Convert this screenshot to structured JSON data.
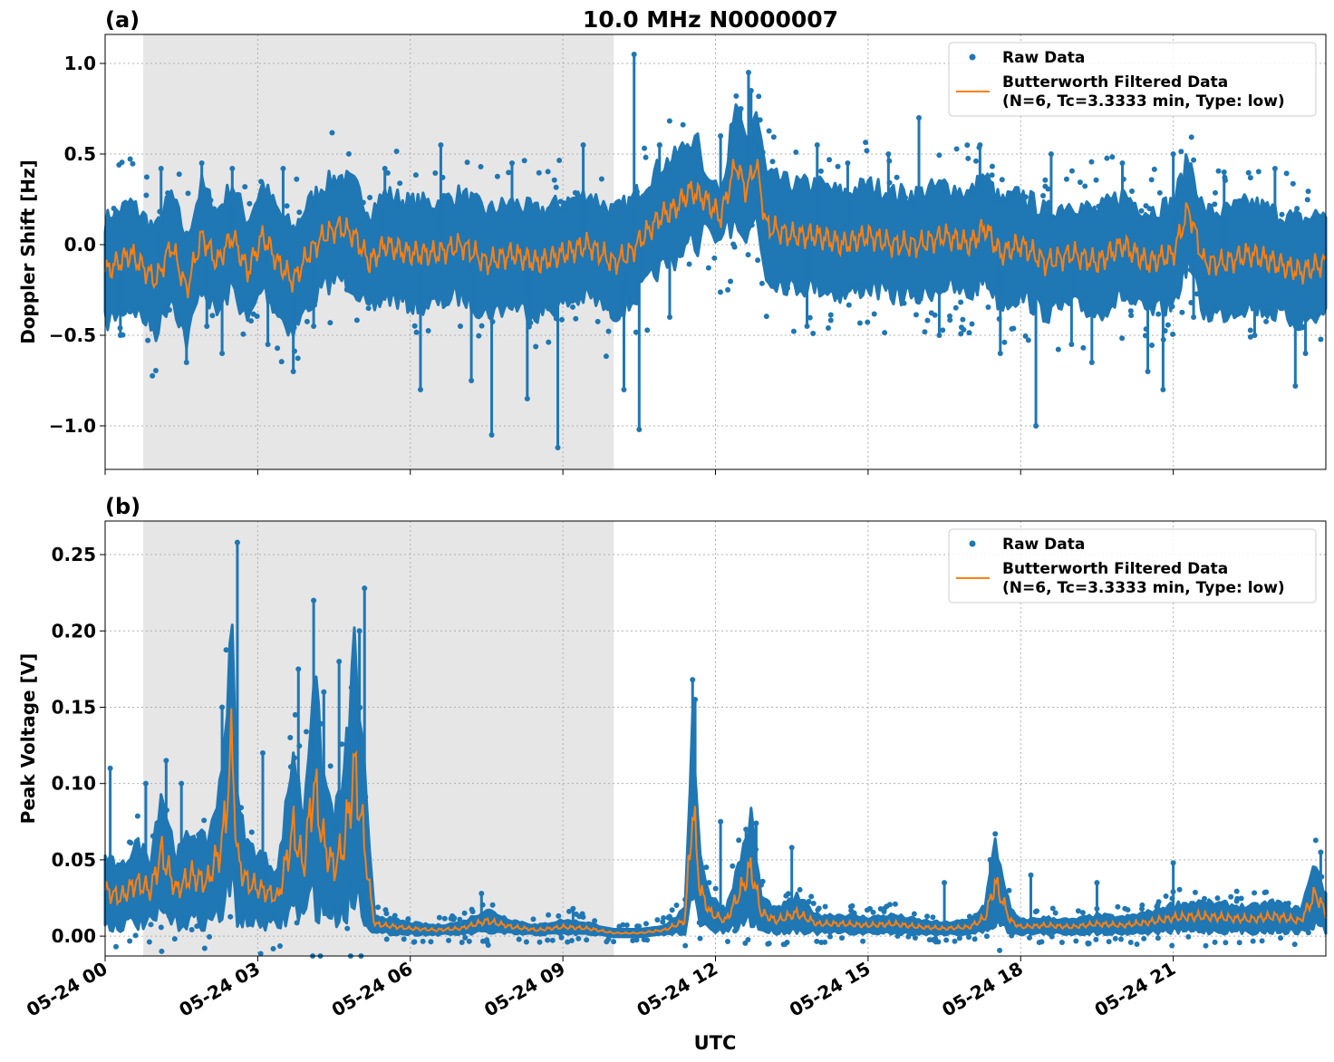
{
  "figure": {
    "title": "10.0 MHz N0000007",
    "xlabel": "UTC",
    "x_tick_labels": [
      "05-24 00",
      "05-24 03",
      "05-24 06",
      "05-24 09",
      "05-24 12",
      "05-24 15",
      "05-24 18",
      "05-24 21"
    ],
    "x_tick_hours": [
      0,
      3,
      6,
      9,
      12,
      15,
      18,
      21
    ],
    "xlim_hours": [
      0,
      24
    ],
    "shaded_interval_hours": [
      0.75,
      10.0
    ]
  },
  "colors": {
    "raw": "#1f77b4",
    "filtered": "#ff7f0e",
    "shade": "#e6e6e6",
    "grid": "#b0b0b0"
  },
  "legend": {
    "raw_label": "Raw Data",
    "filtered_line1": "Butterworth Filtered Data",
    "filtered_line2": "(N=6, Tc=3.3333 min, Type: low)",
    "placement": "top-right"
  },
  "chart_data": [
    {
      "type": "scatter",
      "panel_label": "(a)",
      "title": "10.0 MHz N0000007",
      "xlabel": "",
      "ylabel": "Doppler Shift [Hz]",
      "ylim": [
        -1.24,
        1.16
      ],
      "y_ticks": [
        1.0,
        0.5,
        0.0,
        -0.5,
        -1.0
      ],
      "y_tick_labels": [
        "1.0",
        "0.5",
        "0.0",
        "−0.5",
        "−1.0"
      ],
      "grid": true,
      "series": [
        {
          "name": "Butterworth Filtered Data (N=6, Tc=3.3333 min, Type: low)",
          "hours": [
            0,
            0.5,
            1.0,
            1.3,
            1.6,
            1.9,
            2.2,
            2.5,
            2.8,
            3.1,
            3.4,
            3.7,
            4.0,
            4.3,
            4.6,
            4.9,
            5.2,
            5.5,
            6.0,
            6.5,
            7.0,
            7.5,
            8.0,
            8.5,
            9.0,
            9.5,
            10.0,
            10.3,
            10.6,
            10.9,
            11.2,
            11.5,
            11.8,
            12.1,
            12.4,
            12.6,
            12.8,
            13.0,
            13.5,
            14.0,
            14.5,
            15.0,
            15.5,
            16.0,
            16.5,
            17.0,
            17.3,
            17.6,
            18.0,
            18.5,
            19.0,
            19.5,
            20.0,
            20.5,
            21.0,
            21.3,
            21.6,
            22.0,
            22.5,
            23.0,
            23.5,
            24.0
          ],
          "values": [
            -0.15,
            -0.05,
            -0.2,
            0.0,
            -0.25,
            0.05,
            -0.1,
            0.05,
            -0.15,
            0.05,
            -0.1,
            -0.2,
            -0.05,
            0.05,
            0.1,
            0.05,
            -0.1,
            0.0,
            -0.05,
            -0.05,
            0.0,
            -0.1,
            -0.05,
            -0.1,
            -0.05,
            0.0,
            -0.1,
            -0.05,
            0.05,
            0.15,
            0.2,
            0.3,
            0.25,
            0.15,
            0.45,
            0.3,
            0.45,
            0.1,
            0.05,
            0.05,
            0.0,
            0.05,
            0.0,
            0.0,
            0.05,
            0.0,
            0.1,
            -0.05,
            0.0,
            -0.1,
            -0.05,
            -0.1,
            0.0,
            -0.1,
            -0.05,
            0.2,
            -0.1,
            -0.1,
            -0.05,
            -0.1,
            -0.15,
            -0.1
          ]
        },
        {
          "name": "Raw Data",
          "hours": [
            0.3,
            1.1,
            1.6,
            1.9,
            2.0,
            2.3,
            2.5,
            3.2,
            3.5,
            3.7,
            4.1,
            5.5,
            6.2,
            6.6,
            7.2,
            7.6,
            8.0,
            8.3,
            8.9,
            9.4,
            10.2,
            10.4,
            10.5,
            10.9,
            11.1,
            12.1,
            12.5,
            12.65,
            12.7,
            12.8,
            13.3,
            13.8,
            14.0,
            14.6,
            15.4,
            16.0,
            16.4,
            17.2,
            17.6,
            18.3,
            18.6,
            19.0,
            19.4,
            20.0,
            20.5,
            20.8,
            21.0,
            21.4,
            22.0,
            22.6,
            23.0,
            23.4,
            23.6
          ],
          "values": [
            -0.5,
            0.42,
            -0.65,
            0.45,
            -0.45,
            -0.6,
            0.42,
            -0.55,
            0.42,
            -0.7,
            -0.45,
            0.42,
            -0.8,
            0.55,
            -0.75,
            -1.05,
            0.45,
            -0.85,
            -1.12,
            0.55,
            -0.8,
            1.05,
            -1.02,
            0.55,
            -0.4,
            0.6,
            0.75,
            0.95,
            0.85,
            0.65,
            0.35,
            -0.45,
            0.55,
            0.45,
            0.5,
            0.7,
            -0.5,
            0.55,
            -0.6,
            -1.0,
            0.5,
            -0.55,
            -0.65,
            0.45,
            -0.7,
            -0.8,
            0.5,
            -0.4,
            0.4,
            -0.5,
            0.42,
            -0.78,
            -0.6
          ]
        }
      ]
    },
    {
      "type": "scatter",
      "panel_label": "(b)",
      "xlabel": "UTC",
      "ylabel": "Peak Voltage [V]",
      "ylim": [
        -0.013,
        0.272
      ],
      "y_ticks": [
        0.25,
        0.2,
        0.15,
        0.1,
        0.05,
        0.0
      ],
      "y_tick_labels": [
        "0.25",
        "0.20",
        "0.15",
        "0.10",
        "0.05",
        "0.00"
      ],
      "grid": true,
      "series": [
        {
          "name": "Butterworth Filtered Data (N=6, Tc=3.3333 min, Type: low)",
          "hours": [
            0,
            0.3,
            0.6,
            0.9,
            1.1,
            1.4,
            1.7,
            2.0,
            2.3,
            2.5,
            2.6,
            2.8,
            3.1,
            3.4,
            3.7,
            3.9,
            4.1,
            4.3,
            4.5,
            4.7,
            4.9,
            5.1,
            5.2,
            5.3,
            5.5,
            6.0,
            6.5,
            7.0,
            7.5,
            8.0,
            8.5,
            9.0,
            9.5,
            10.0,
            10.5,
            11.0,
            11.4,
            11.55,
            11.7,
            11.9,
            12.2,
            12.5,
            12.7,
            12.9,
            13.2,
            13.6,
            14.0,
            14.5,
            15.0,
            15.5,
            16.0,
            16.5,
            17.0,
            17.3,
            17.5,
            17.8,
            18.0,
            18.5,
            19.0,
            19.5,
            20.0,
            20.5,
            21.0,
            21.5,
            22.0,
            22.5,
            23.0,
            23.5,
            23.8,
            24.0
          ],
          "values": [
            0.03,
            0.025,
            0.035,
            0.03,
            0.055,
            0.03,
            0.04,
            0.035,
            0.06,
            0.125,
            0.05,
            0.035,
            0.03,
            0.025,
            0.07,
            0.045,
            0.1,
            0.06,
            0.045,
            0.06,
            0.11,
            0.06,
            0.03,
            0.008,
            0.007,
            0.005,
            0.004,
            0.005,
            0.01,
            0.006,
            0.004,
            0.006,
            0.005,
            0.002,
            0.002,
            0.004,
            0.01,
            0.085,
            0.03,
            0.015,
            0.01,
            0.03,
            0.045,
            0.015,
            0.01,
            0.015,
            0.008,
            0.008,
            0.007,
            0.008,
            0.006,
            0.005,
            0.006,
            0.012,
            0.035,
            0.01,
            0.006,
            0.007,
            0.006,
            0.008,
            0.007,
            0.009,
            0.012,
            0.013,
            0.012,
            0.011,
            0.013,
            0.01,
            0.028,
            0.015
          ]
        },
        {
          "name": "Raw Data",
          "hours": [
            0.1,
            0.8,
            1.2,
            1.5,
            2.3,
            2.6,
            3.1,
            3.8,
            4.1,
            4.3,
            4.6,
            5.0,
            5.1,
            7.4,
            9.2,
            11.55,
            11.6,
            12.1,
            12.6,
            12.8,
            13.5,
            16.5,
            17.4,
            18.2,
            19.5,
            21.0,
            23.9
          ],
          "values": [
            0.11,
            0.1,
            0.115,
            0.1,
            0.15,
            0.258,
            0.12,
            0.175,
            0.22,
            0.16,
            0.18,
            0.2,
            0.228,
            0.028,
            0.018,
            0.168,
            0.155,
            0.075,
            0.07,
            0.074,
            0.058,
            0.035,
            0.05,
            0.04,
            0.035,
            0.048,
            0.055
          ]
        }
      ]
    }
  ]
}
